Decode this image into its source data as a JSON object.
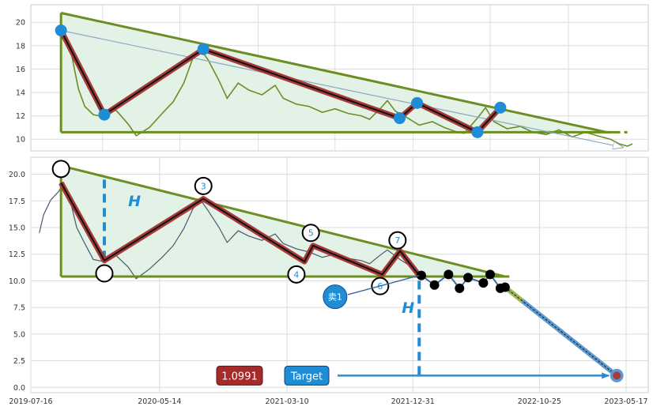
{
  "chart_data": [
    {
      "type": "line",
      "panel": "top",
      "title": "",
      "xlabel": "",
      "ylabel": "",
      "ylim": [
        9.0,
        21.5
      ],
      "yticks": [
        10,
        12,
        14,
        16,
        18,
        20
      ],
      "grid": true,
      "series": [
        {
          "role": "price",
          "color": "#6b8e23",
          "points": [
            [
              "2019-10-03",
              19.0
            ],
            [
              "2019-10-20",
              17.2
            ],
            [
              "2019-11-05",
              14.3
            ],
            [
              "2019-11-20",
              12.8
            ],
            [
              "2019-12-10",
              12.1
            ],
            [
              "2020-01-05",
              11.9
            ],
            [
              "2020-02-01",
              12.5
            ],
            [
              "2020-03-01",
              11.3
            ],
            [
              "2020-03-20",
              10.3
            ],
            [
              "2020-04-20",
              11.0
            ],
            [
              "2020-05-20",
              12.2
            ],
            [
              "2020-06-15",
              13.2
            ],
            [
              "2020-07-10",
              14.8
            ],
            [
              "2020-08-01",
              17.0
            ],
            [
              "2020-08-20",
              17.6
            ],
            [
              "2020-09-05",
              16.8
            ],
            [
              "2020-10-01",
              15.0
            ],
            [
              "2020-10-20",
              13.5
            ],
            [
              "2020-11-15",
              14.8
            ],
            [
              "2020-12-10",
              14.2
            ],
            [
              "2021-01-10",
              13.8
            ],
            [
              "2021-02-10",
              14.6
            ],
            [
              "2021-03-01",
              13.5
            ],
            [
              "2021-04-01",
              13.0
            ],
            [
              "2021-05-01",
              12.8
            ],
            [
              "2021-06-01",
              12.3
            ],
            [
              "2021-07-01",
              12.6
            ],
            [
              "2021-08-01",
              12.2
            ],
            [
              "2021-09-01",
              12.0
            ],
            [
              "2021-09-20",
              11.7
            ],
            [
              "2021-10-15",
              12.6
            ],
            [
              "2021-11-01",
              13.3
            ],
            [
              "2021-11-20",
              12.4
            ],
            [
              "2021-12-15",
              11.9
            ],
            [
              "2022-01-15",
              11.2
            ],
            [
              "2022-02-15",
              11.5
            ],
            [
              "2022-03-15",
              11.0
            ],
            [
              "2022-04-15",
              10.6
            ],
            [
              "2022-05-01",
              10.5
            ],
            [
              "2022-06-01",
              11.8
            ],
            [
              "2022-06-20",
              12.7
            ],
            [
              "2022-07-10",
              11.5
            ],
            [
              "2022-08-10",
              10.9
            ],
            [
              "2022-09-10",
              11.1
            ],
            [
              "2022-10-10",
              10.6
            ],
            [
              "2022-11-10",
              10.4
            ],
            [
              "2022-12-10",
              10.8
            ],
            [
              "2023-01-10",
              10.2
            ],
            [
              "2023-02-10",
              10.6
            ],
            [
              "2023-03-10",
              10.3
            ],
            [
              "2023-04-10",
              10.0
            ],
            [
              "2023-05-01",
              9.6
            ],
            [
              "2023-05-20",
              9.4
            ],
            [
              "2023-06-01",
              9.6
            ]
          ]
        },
        {
          "role": "zigzag",
          "color": "#1f8dd6",
          "points": [
            [
              "2019-09-25",
              19.3
            ],
            [
              "2020-01-05",
              12.1
            ],
            [
              "2020-08-25",
              17.7
            ],
            [
              "2021-11-30",
              11.8
            ],
            [
              "2022-01-10",
              13.1
            ],
            [
              "2022-06-01",
              10.6
            ],
            [
              "2022-07-25",
              12.7
            ]
          ]
        }
      ],
      "lines": [
        {
          "role": "upper-trendline",
          "color": "#6b8e23",
          "from": [
            "2019-09-25",
            20.8
          ],
          "to": [
            "2023-04-01",
            10.6
          ]
        },
        {
          "role": "support",
          "color": "#6b8e23",
          "from": [
            "2019-09-25",
            10.6
          ],
          "to": [
            "2023-04-20",
            10.6
          ]
        },
        {
          "role": "support-extension",
          "color": "#6b8e23",
          "dashed": true,
          "from": [
            "2023-03-01",
            10.6
          ],
          "to": [
            "2023-05-20",
            10.6
          ]
        },
        {
          "role": "arrow",
          "color": "#aac4dc",
          "from": [
            "2019-09-25",
            19.3
          ],
          "to": [
            "2023-05-10",
            9.3
          ]
        }
      ]
    },
    {
      "type": "line",
      "panel": "bottom",
      "title": "",
      "xlabel": "",
      "ylabel": "",
      "ylim": [
        -0.5,
        21.6
      ],
      "yticks": [
        "0.0",
        "2.5",
        "5.0",
        "7.5",
        "10.0",
        "12.5",
        "15.0",
        "17.5",
        "20.0"
      ],
      "xticks": [
        "2019-07-16",
        "2020-05-14",
        "2021-03-10",
        "2021-12-31",
        "2022-10-25",
        "2023-05-17"
      ],
      "grid": true,
      "series": [
        {
          "role": "price",
          "color": "#4a5670",
          "points": [
            [
              "2019-08-05",
              14.5
            ],
            [
              "2019-08-15",
              16.2
            ],
            [
              "2019-09-01",
              17.6
            ],
            [
              "2019-09-20",
              18.4
            ],
            [
              "2019-10-01",
              19.2
            ],
            [
              "2019-10-15",
              17.8
            ],
            [
              "2019-11-01",
              15.0
            ],
            [
              "2019-11-20",
              13.5
            ],
            [
              "2019-12-10",
              12.0
            ],
            [
              "2020-01-05",
              11.8
            ],
            [
              "2020-02-01",
              12.4
            ],
            [
              "2020-03-01",
              11.3
            ],
            [
              "2020-03-20",
              10.2
            ],
            [
              "2020-04-20",
              11.1
            ],
            [
              "2020-05-20",
              12.2
            ],
            [
              "2020-06-15",
              13.3
            ],
            [
              "2020-07-10",
              14.9
            ],
            [
              "2020-08-01",
              16.8
            ],
            [
              "2020-08-20",
              17.5
            ],
            [
              "2020-09-05",
              16.6
            ],
            [
              "2020-10-01",
              15.0
            ],
            [
              "2020-10-20",
              13.6
            ],
            [
              "2020-11-15",
              14.7
            ],
            [
              "2020-12-10",
              14.2
            ],
            [
              "2021-01-10",
              13.8
            ],
            [
              "2021-02-10",
              14.4
            ],
            [
              "2021-03-01",
              13.5
            ],
            [
              "2021-04-01",
              13.0
            ],
            [
              "2021-05-01",
              12.7
            ],
            [
              "2021-06-01",
              12.2
            ],
            [
              "2021-07-01",
              12.5
            ],
            [
              "2021-08-01",
              12.1
            ],
            [
              "2021-09-01",
              11.9
            ],
            [
              "2021-09-20",
              11.6
            ],
            [
              "2021-10-15",
              12.4
            ],
            [
              "2021-11-01",
              12.9
            ],
            [
              "2021-12-01",
              12.0
            ],
            [
              "2022-01-01",
              11.2
            ],
            [
              "2022-01-20",
              10.6
            ]
          ]
        },
        {
          "role": "zigzag",
          "color": "#a83a3a",
          "points": [
            [
              "2019-09-25",
              19.2
            ],
            [
              "2020-01-05",
              11.9
            ],
            [
              "2020-08-25",
              17.7
            ],
            [
              "2021-04-20",
              11.8
            ],
            [
              "2021-05-10",
              13.3
            ],
            [
              "2021-10-20",
              10.6
            ],
            [
              "2021-12-01",
              12.8
            ],
            [
              "2022-01-15",
              10.5
            ]
          ]
        },
        {
          "role": "pivots",
          "color": "#000000",
          "points": [
            [
              "2022-01-20",
              10.5
            ],
            [
              "2022-02-20",
              9.6
            ],
            [
              "2022-03-25",
              10.6
            ],
            [
              "2022-04-20",
              9.3
            ],
            [
              "2022-05-10",
              10.3
            ],
            [
              "2022-06-15",
              9.8
            ],
            [
              "2022-07-01",
              10.6
            ],
            [
              "2022-07-25",
              9.3
            ],
            [
              "2022-08-05",
              9.4
            ]
          ]
        },
        {
          "role": "projection",
          "color": "#3a8ac8",
          "points": [
            [
              "2022-08-05",
              9.4
            ],
            [
              "2023-04-25",
              1.1
            ]
          ]
        }
      ],
      "markers": [
        {
          "date": "2019-09-25",
          "value": 20.5,
          "label": ""
        },
        {
          "date": "2020-01-05",
          "value": 10.7,
          "label": ""
        },
        {
          "date": "2020-08-25",
          "value": 18.9,
          "label": "3"
        },
        {
          "date": "2021-04-01",
          "value": 10.6,
          "label": "4"
        },
        {
          "date": "2021-05-05",
          "value": 14.5,
          "label": "5"
        },
        {
          "date": "2021-10-15",
          "value": 9.5,
          "label": "6"
        },
        {
          "date": "2021-11-25",
          "value": 13.8,
          "label": "7"
        }
      ],
      "annotations": {
        "h_upper": "H",
        "h_lower": "H",
        "sell_label": "卖1",
        "value_box": "1.0991",
        "target_box": "Target"
      },
      "colors": {
        "accent": "#1f8dd6",
        "trend": "#6b8e23",
        "zigzag": "#a83a3a",
        "value_box": "#a52a2a"
      }
    }
  ]
}
